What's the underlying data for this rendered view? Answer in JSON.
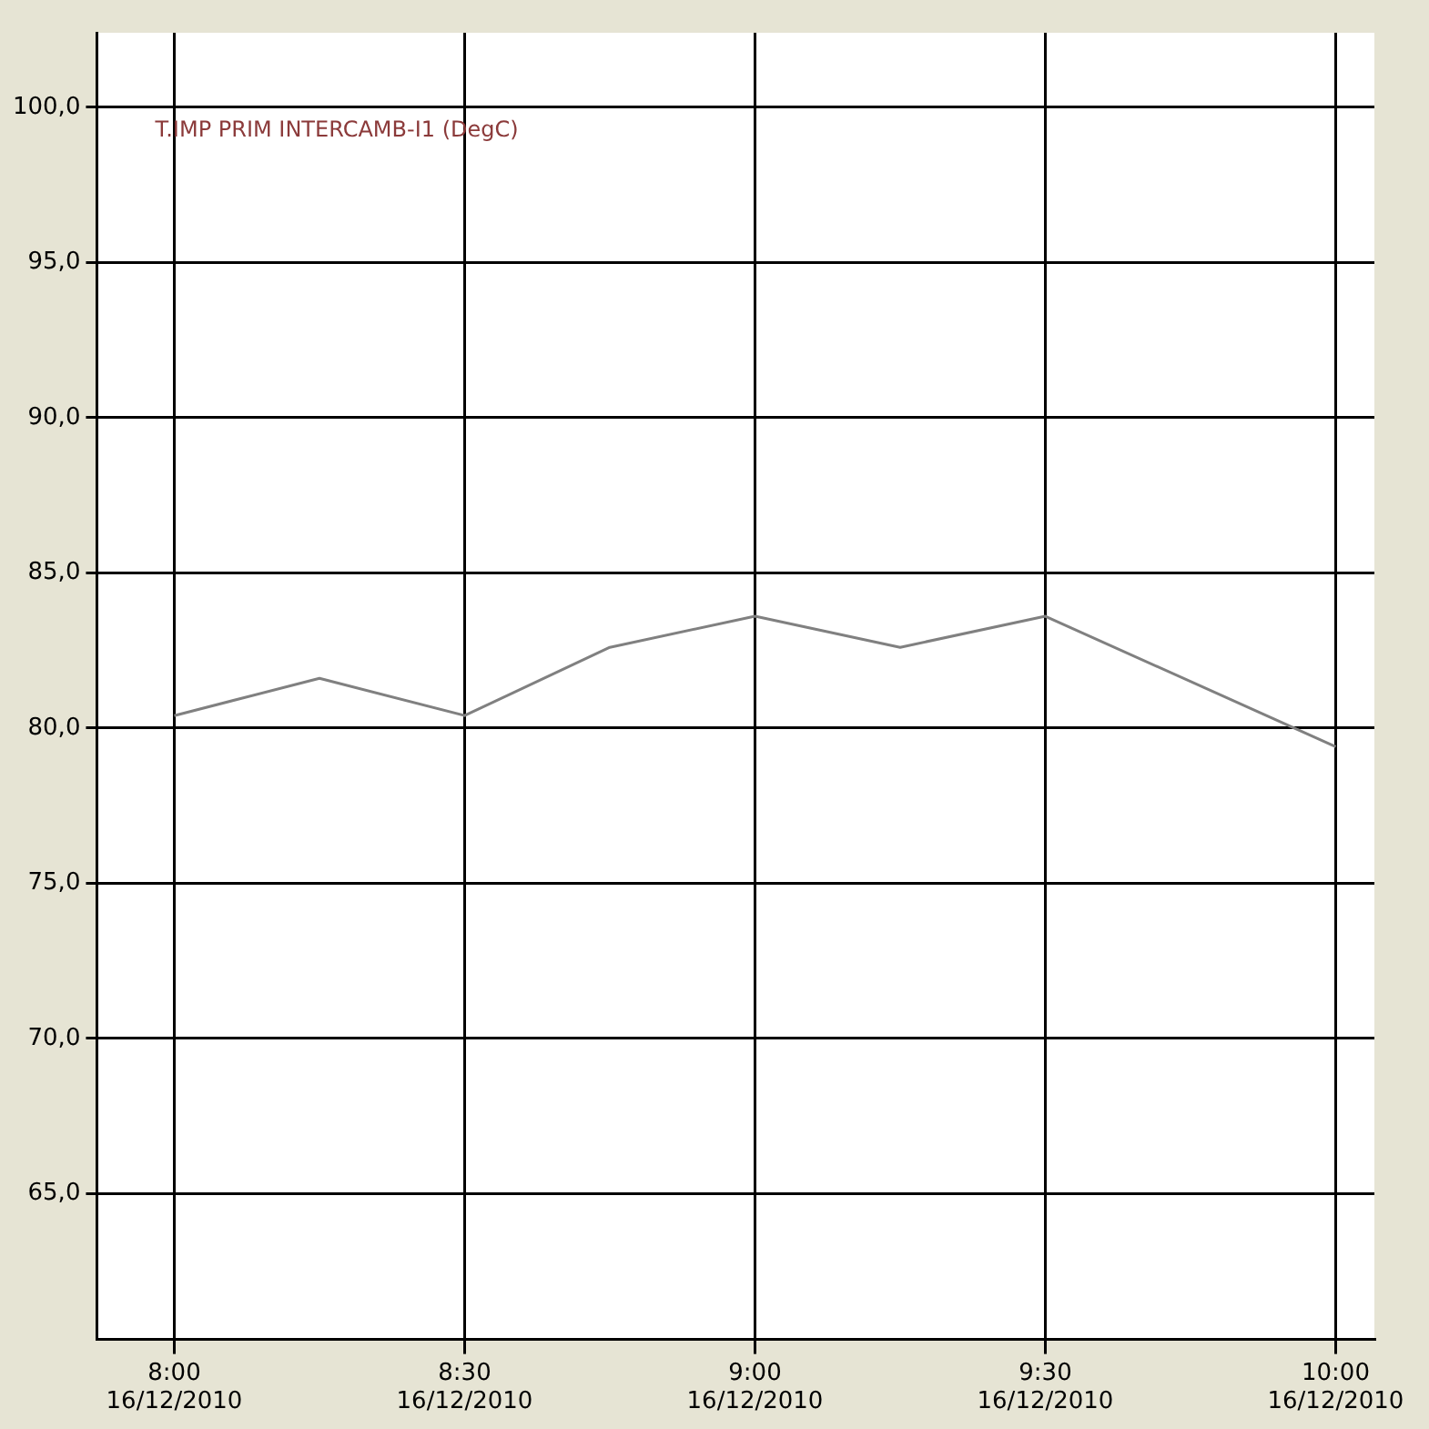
{
  "chart_data": {
    "type": "line",
    "x": [
      "2010-12-16T08:00",
      "2010-12-16T08:15",
      "2010-12-16T08:30",
      "2010-12-16T08:45",
      "2010-12-16T09:00",
      "2010-12-16T09:15",
      "2010-12-16T09:30",
      "2010-12-16T10:00"
    ],
    "series": [
      {
        "name": "T.IMP PRIM INTERCAMB-I1 (DegC)",
        "color": "#808080",
        "values": [
          80.4,
          81.6,
          80.4,
          82.6,
          83.6,
          82.6,
          83.6,
          79.4
        ]
      }
    ],
    "xlim": [
      "2010-12-16T07:52",
      "2010-12-16T10:04"
    ],
    "xticks": [
      {
        "value": "2010-12-16T08:00",
        "label": "8:00\n16/12/2010"
      },
      {
        "value": "2010-12-16T08:30",
        "label": "8:30\n16/12/2010"
      },
      {
        "value": "2010-12-16T09:00",
        "label": "9:00\n16/12/2010"
      },
      {
        "value": "2010-12-16T09:30",
        "label": "9:30\n16/12/2010"
      },
      {
        "value": "2010-12-16T10:00",
        "label": "10:00\n16/12/2010"
      }
    ],
    "ylim": [
      60.3,
      102.4
    ],
    "yticks": [
      {
        "value": 65,
        "label": "65,0"
      },
      {
        "value": 70,
        "label": "70,0"
      },
      {
        "value": 75,
        "label": "75,0"
      },
      {
        "value": 80,
        "label": "80,0"
      },
      {
        "value": 85,
        "label": "85,0"
      },
      {
        "value": 90,
        "label": "90,0"
      },
      {
        "value": 95,
        "label": "95,0"
      },
      {
        "value": 100,
        "label": "100,0"
      }
    ],
    "grid": true,
    "legend": "top left",
    "marker": "none",
    "line_style": "solid"
  }
}
